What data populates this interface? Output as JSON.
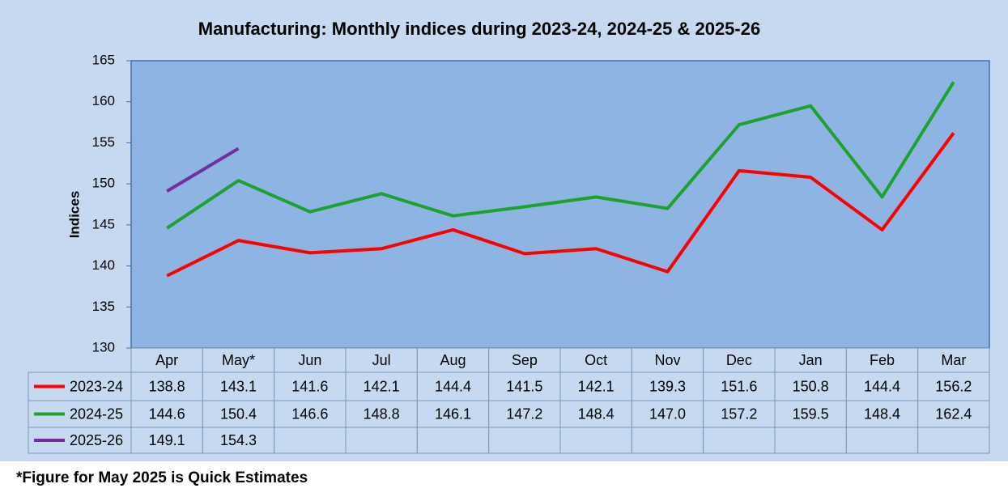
{
  "chart_data": {
    "type": "line",
    "title": "Manufacturing: Monthly indices during 2023-24, 2024-25 & 2025-26",
    "y_label": "Indices",
    "footnote": "*Figure for May 2025 is Quick Estimates",
    "categories": [
      "Apr",
      "May*",
      "Jun",
      "Jul",
      "Aug",
      "Sep",
      "Oct",
      "Nov",
      "Dec",
      "Jan",
      "Feb",
      "Mar"
    ],
    "series": [
      {
        "name": "2023-24",
        "color": "#ff0000",
        "values": [
          138.8,
          143.1,
          141.6,
          142.1,
          144.4,
          141.5,
          142.1,
          139.3,
          151.6,
          150.8,
          144.4,
          156.2
        ],
        "value_labels": [
          "138.8",
          "143.1",
          "141.6",
          "142.1",
          "144.4",
          "141.5",
          "142.1",
          "139.3",
          "151.6",
          "150.8",
          "144.4",
          "156.2"
        ]
      },
      {
        "name": "2024-25",
        "color": "#1fa22b",
        "values": [
          144.6,
          150.4,
          146.6,
          148.8,
          146.1,
          147.2,
          148.4,
          147.0,
          157.2,
          159.5,
          148.4,
          162.4
        ],
        "value_labels": [
          "144.6",
          "150.4",
          "146.6",
          "148.8",
          "146.1",
          "147.2",
          "148.4",
          "147.0",
          "157.2",
          "159.5",
          "148.4",
          "162.4"
        ]
      },
      {
        "name": "2025-26",
        "color": "#7030a0",
        "values": [
          149.1,
          154.3,
          null,
          null,
          null,
          null,
          null,
          null,
          null,
          null,
          null,
          null
        ],
        "value_labels": [
          "149.1",
          "154.3",
          null,
          null,
          null,
          null,
          null,
          null,
          null,
          null,
          null,
          null
        ]
      }
    ],
    "ylim": [
      130,
      165
    ],
    "yticks": [
      130,
      135,
      140,
      145,
      150,
      155,
      160,
      165
    ],
    "grid": false
  }
}
